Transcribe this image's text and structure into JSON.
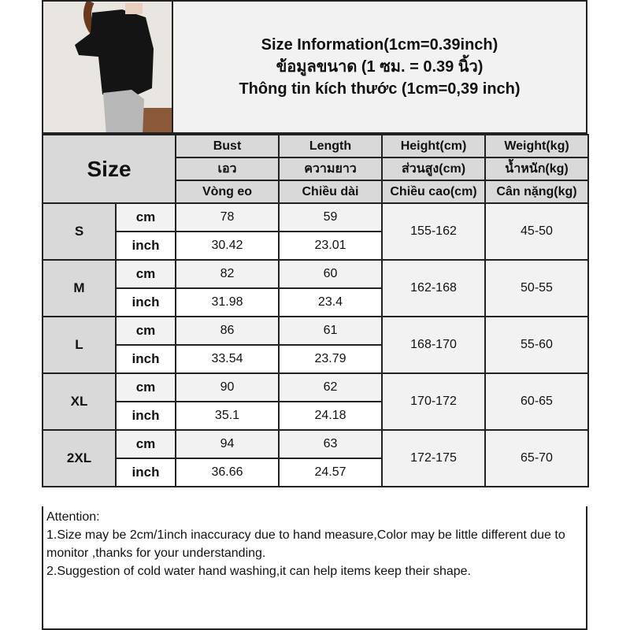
{
  "photo": {
    "alt": "model wearing black long-sleeve top and gray pants"
  },
  "title": {
    "line1": "Size Information(1cm=0.39inch)",
    "line2": "ข้อมูลขนาด (1 ซม. = 0.39 นิ้ว)",
    "line3": "Thông tin kích thước (1cm=0,39 inch)"
  },
  "table": {
    "size_header": "Size",
    "columns": [
      {
        "en": "Bust",
        "th": "เอว",
        "vi": "Vòng eo"
      },
      {
        "en": "Length",
        "th": "ความยาว",
        "vi": "Chiều dài"
      },
      {
        "en": "Height(cm)",
        "th": "ส่วนสูง(cm)",
        "vi": "Chiều cao(cm)"
      },
      {
        "en": "Weight(kg)",
        "th": "น้ำหนัก(kg)",
        "vi": "Cân nặng(kg)"
      }
    ],
    "unit_cm": "cm",
    "unit_inch": "inch",
    "rows": [
      {
        "size": "S",
        "bust_cm": "78",
        "length_cm": "59",
        "bust_inch": "30.42",
        "length_inch": "23.01",
        "height": "155-162",
        "weight": "45-50"
      },
      {
        "size": "M",
        "bust_cm": "82",
        "length_cm": "60",
        "bust_inch": "31.98",
        "length_inch": "23.4",
        "height": "162-168",
        "weight": "50-55"
      },
      {
        "size": "L",
        "bust_cm": "86",
        "length_cm": "61",
        "bust_inch": "33.54",
        "length_inch": "23.79",
        "height": "168-170",
        "weight": "55-60"
      },
      {
        "size": "XL",
        "bust_cm": "90",
        "length_cm": "62",
        "bust_inch": "35.1",
        "length_inch": "24.18",
        "height": "170-172",
        "weight": "60-65"
      },
      {
        "size": "2XL",
        "bust_cm": "94",
        "length_cm": "63",
        "bust_inch": "36.66",
        "length_inch": "24.57",
        "height": "172-175",
        "weight": "65-70"
      }
    ]
  },
  "attention": {
    "heading": "Attention:",
    "note1": "1.Size may be 2cm/1inch inaccuracy due to hand measure,Color may be little different due to monitor ,thanks for your understanding.",
    "note2": "2.Suggestion of cold water hand washing,it can help items keep their shape."
  }
}
